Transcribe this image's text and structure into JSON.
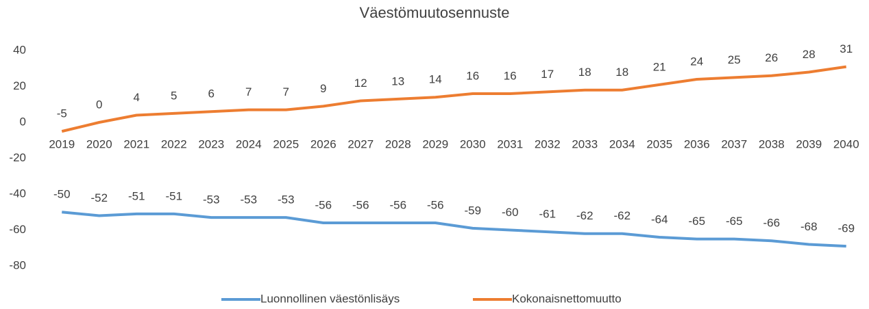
{
  "chart_data": {
    "type": "line",
    "title": "Väestömuutosennuste",
    "categories": [
      "2019",
      "2020",
      "2021",
      "2022",
      "2023",
      "2024",
      "2025",
      "2026",
      "2027",
      "2028",
      "2029",
      "2030",
      "2031",
      "2032",
      "2033",
      "2034",
      "2035",
      "2036",
      "2037",
      "2038",
      "2039",
      "2040"
    ],
    "series": [
      {
        "name": "Luonnollinen väestönlisäys",
        "color": "#5b9bd5",
        "values": [
          -50,
          -52,
          -51,
          -51,
          -53,
          -53,
          -53,
          -56,
          -56,
          -56,
          -56,
          -59,
          -60,
          -61,
          -62,
          -62,
          -64,
          -65,
          -65,
          -66,
          -68,
          -69
        ]
      },
      {
        "name": "Kokonaisnettomuutto",
        "color": "#ed7d31",
        "values": [
          -5,
          0,
          4,
          5,
          6,
          7,
          7,
          9,
          12,
          13,
          14,
          16,
          16,
          17,
          18,
          18,
          21,
          24,
          25,
          26,
          28,
          31
        ]
      }
    ],
    "ylim": [
      -80,
      40
    ],
    "yticks": [
      -80,
      -60,
      -40,
      -20,
      0,
      20,
      40
    ],
    "grid": false,
    "legend": "bottom"
  }
}
